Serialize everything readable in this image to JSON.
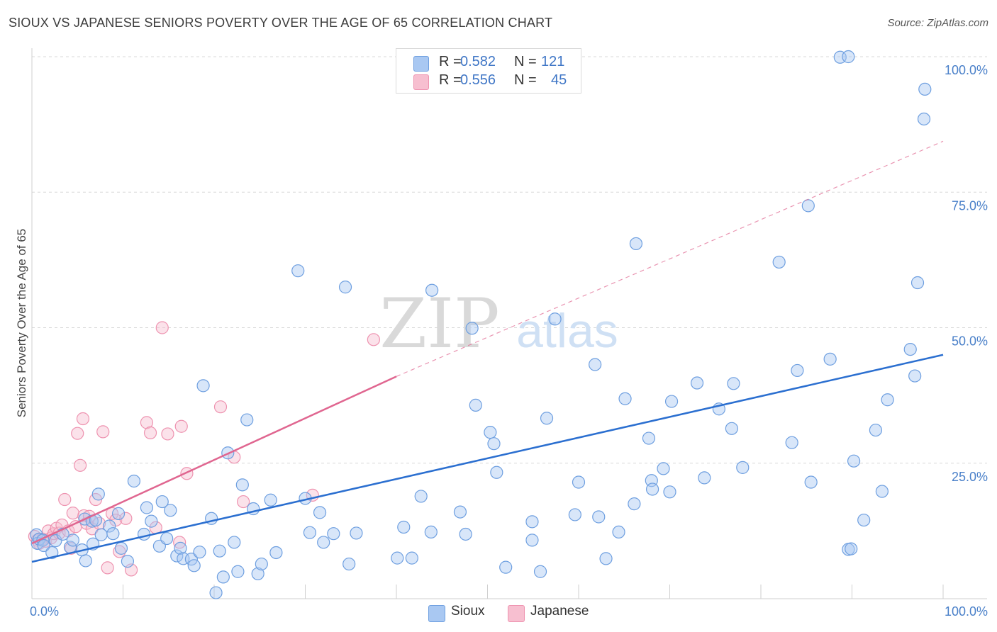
{
  "title": "SIOUX VS JAPANESE SENIORS POVERTY OVER THE AGE OF 65 CORRELATION CHART",
  "source": "Source: ZipAtlas.com",
  "watermark": {
    "zip": "ZIP",
    "atlas": "atlas"
  },
  "legend": {
    "r_label": "R =",
    "n_label": "N =",
    "sioux": {
      "r": "0.582",
      "n": "121"
    },
    "japanese": {
      "r": "0.556",
      "n": "45"
    }
  },
  "bottom_legend": {
    "sioux": "Sioux",
    "japanese": "Japanese"
  },
  "colors": {
    "sioux_fill": "#a9c8f2",
    "sioux_stroke": "#6e9fe0",
    "sioux_line": "#2b6fd0",
    "japanese_fill": "#f7bfd0",
    "japanese_stroke": "#ee93b0",
    "japanese_line": "#e06690",
    "tick": "#4a80c9",
    "grid": "#d8d8d8"
  },
  "chart_data": {
    "type": "scatter",
    "title": "SIOUX VS JAPANESE SENIORS POVERTY OVER THE AGE OF 65 CORRELATION CHART",
    "xlabel": "",
    "ylabel": "Seniors Poverty Over the Age of 65",
    "xlim": [
      0,
      100
    ],
    "ylim": [
      0,
      100
    ],
    "x_tick_labels": [
      "0.0%",
      "100.0%"
    ],
    "y_ticks": [
      25,
      50,
      75,
      100
    ],
    "y_tick_labels": [
      "25.0%",
      "50.0%",
      "75.0%",
      "100.0%"
    ],
    "grid": true,
    "series": [
      {
        "name": "Sioux",
        "r": 0.582,
        "n": 121,
        "trend": {
          "x": [
            0,
            100
          ],
          "y": [
            6.8,
            45.0
          ],
          "style": "solid"
        },
        "points": [
          [
            0.5,
            11.8
          ],
          [
            0.6,
            10.2
          ],
          [
            0.8,
            11.0
          ],
          [
            1.2,
            10.8
          ],
          [
            1.3,
            9.8
          ],
          [
            2.2,
            8.5
          ],
          [
            2.6,
            10.7
          ],
          [
            3.4,
            11.9
          ],
          [
            4.2,
            9.5
          ],
          [
            4.5,
            10.8
          ],
          [
            5.5,
            9.0
          ],
          [
            5.8,
            14.7
          ],
          [
            5.9,
            7.0
          ],
          [
            6.6,
            14.3
          ],
          [
            6.7,
            10.1
          ],
          [
            7.0,
            14.5
          ],
          [
            7.3,
            19.3
          ],
          [
            7.6,
            11.8
          ],
          [
            8.5,
            13.4
          ],
          [
            8.9,
            12.0
          ],
          [
            9.5,
            15.7
          ],
          [
            9.8,
            9.3
          ],
          [
            10.5,
            6.9
          ],
          [
            11.2,
            21.7
          ],
          [
            12.3,
            11.9
          ],
          [
            12.6,
            16.8
          ],
          [
            13.1,
            14.3
          ],
          [
            14.0,
            9.7
          ],
          [
            14.3,
            17.9
          ],
          [
            14.8,
            11.1
          ],
          [
            15.2,
            16.3
          ],
          [
            15.9,
            7.9
          ],
          [
            16.3,
            9.3
          ],
          [
            16.6,
            7.4
          ],
          [
            17.5,
            7.3
          ],
          [
            17.8,
            6.1
          ],
          [
            18.4,
            8.6
          ],
          [
            18.8,
            39.3
          ],
          [
            19.7,
            14.8
          ],
          [
            20.2,
            1.1
          ],
          [
            20.6,
            8.8
          ],
          [
            21.0,
            4.0
          ],
          [
            21.5,
            26.9
          ],
          [
            22.2,
            10.4
          ],
          [
            22.6,
            5.0
          ],
          [
            23.1,
            21.0
          ],
          [
            23.6,
            33.0
          ],
          [
            24.3,
            16.6
          ],
          [
            24.8,
            4.6
          ],
          [
            25.2,
            6.4
          ],
          [
            26.2,
            18.2
          ],
          [
            26.8,
            8.5
          ],
          [
            29.2,
            60.5
          ],
          [
            30.0,
            18.5
          ],
          [
            30.5,
            12.2
          ],
          [
            31.6,
            15.9
          ],
          [
            32.0,
            10.4
          ],
          [
            33.1,
            12.0
          ],
          [
            34.4,
            57.5
          ],
          [
            34.8,
            6.4
          ],
          [
            35.6,
            12.1
          ],
          [
            40.1,
            7.5
          ],
          [
            40.8,
            13.2
          ],
          [
            41.7,
            7.5
          ],
          [
            42.7,
            18.9
          ],
          [
            43.8,
            12.3
          ],
          [
            43.9,
            56.9
          ],
          [
            47.0,
            16.0
          ],
          [
            47.6,
            11.9
          ],
          [
            48.3,
            49.9
          ],
          [
            48.7,
            35.7
          ],
          [
            50.3,
            30.7
          ],
          [
            50.7,
            28.6
          ],
          [
            51.0,
            23.3
          ],
          [
            52.0,
            5.8
          ],
          [
            54.9,
            10.8
          ],
          [
            54.9,
            14.2
          ],
          [
            55.8,
            5.0
          ],
          [
            56.5,
            33.3
          ],
          [
            57.4,
            51.6
          ],
          [
            59.6,
            15.5
          ],
          [
            60.0,
            21.5
          ],
          [
            61.8,
            43.2
          ],
          [
            62.2,
            15.1
          ],
          [
            63.0,
            7.4
          ],
          [
            64.4,
            12.3
          ],
          [
            65.1,
            36.9
          ],
          [
            66.1,
            17.5
          ],
          [
            66.3,
            65.5
          ],
          [
            67.7,
            29.6
          ],
          [
            68.0,
            21.8
          ],
          [
            68.1,
            20.2
          ],
          [
            69.3,
            24.0
          ],
          [
            70.0,
            19.7
          ],
          [
            70.2,
            36.4
          ],
          [
            73.0,
            39.8
          ],
          [
            73.8,
            22.3
          ],
          [
            75.4,
            35.0
          ],
          [
            76.8,
            31.4
          ],
          [
            77.0,
            39.7
          ],
          [
            78.0,
            24.2
          ],
          [
            82.0,
            62.1
          ],
          [
            83.4,
            28.8
          ],
          [
            84.0,
            42.1
          ],
          [
            85.2,
            72.5
          ],
          [
            85.5,
            21.5
          ],
          [
            87.6,
            44.2
          ],
          [
            88.7,
            99.9
          ],
          [
            89.6,
            100.0
          ],
          [
            89.6,
            9.1
          ],
          [
            89.9,
            9.2
          ],
          [
            90.2,
            25.4
          ],
          [
            91.3,
            14.5
          ],
          [
            92.6,
            31.1
          ],
          [
            93.3,
            19.8
          ],
          [
            93.9,
            36.7
          ],
          [
            96.4,
            46.0
          ],
          [
            96.9,
            41.1
          ],
          [
            97.2,
            58.3
          ],
          [
            97.9,
            88.5
          ],
          [
            98.0,
            94.0
          ]
        ]
      },
      {
        "name": "Japanese",
        "r": 0.556,
        "n": 45,
        "trend": {
          "x": [
            0,
            40.0
          ],
          "y": [
            10.2,
            41.0
          ],
          "style": "solid",
          "extended": {
            "x": [
              40.0,
              100
            ],
            "y": [
              41.0,
              84.4
            ],
            "style": "dashed"
          }
        },
        "points": [
          [
            0.3,
            11.5
          ],
          [
            0.6,
            10.8
          ],
          [
            0.8,
            10.2
          ],
          [
            1.2,
            11.0
          ],
          [
            1.5,
            10.6
          ],
          [
            1.8,
            12.5
          ],
          [
            2.1,
            11.2
          ],
          [
            2.4,
            12.0
          ],
          [
            2.7,
            13.0
          ],
          [
            3.0,
            12.1
          ],
          [
            3.3,
            13.6
          ],
          [
            3.6,
            18.3
          ],
          [
            4.0,
            12.5
          ],
          [
            4.3,
            9.3
          ],
          [
            4.5,
            15.8
          ],
          [
            4.8,
            13.3
          ],
          [
            5.0,
            30.5
          ],
          [
            5.3,
            24.6
          ],
          [
            5.6,
            33.2
          ],
          [
            5.7,
            15.3
          ],
          [
            6.0,
            13.9
          ],
          [
            6.3,
            15.2
          ],
          [
            6.6,
            12.9
          ],
          [
            7.0,
            18.3
          ],
          [
            7.4,
            13.9
          ],
          [
            7.8,
            30.8
          ],
          [
            8.3,
            5.7
          ],
          [
            8.8,
            15.7
          ],
          [
            9.2,
            14.5
          ],
          [
            9.6,
            8.7
          ],
          [
            10.3,
            14.8
          ],
          [
            10.9,
            5.3
          ],
          [
            12.6,
            32.5
          ],
          [
            13.0,
            30.6
          ],
          [
            13.6,
            13.1
          ],
          [
            14.3,
            50.0
          ],
          [
            14.9,
            30.4
          ],
          [
            16.2,
            10.4
          ],
          [
            16.4,
            31.8
          ],
          [
            17.0,
            23.1
          ],
          [
            20.7,
            35.4
          ],
          [
            22.2,
            26.1
          ],
          [
            23.2,
            17.9
          ],
          [
            30.8,
            19.1
          ],
          [
            37.5,
            47.8
          ]
        ]
      }
    ]
  }
}
